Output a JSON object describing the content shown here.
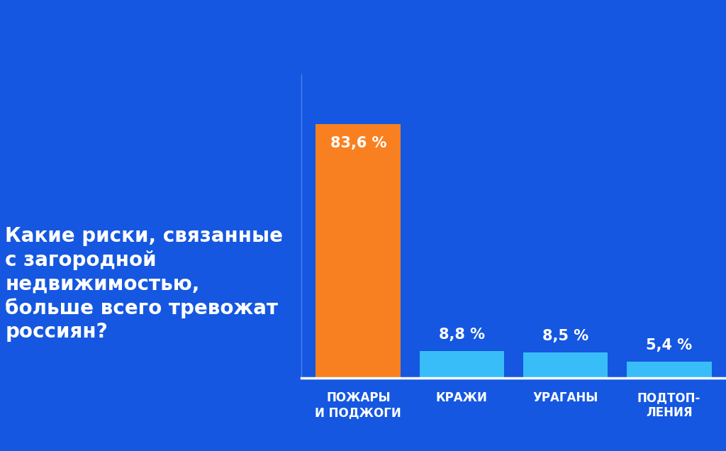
{
  "chart_data": {
    "type": "bar",
    "title": "Какие риски, связанные с загородной недвижимостью, больше всего тревожат россиян?",
    "categories": [
      "ПОЖАРЫ\nИ ПОДЖОГИ",
      "КРАЖИ",
      "УРАГАНЫ",
      "ПОДТОП-\nЛЕНИЯ"
    ],
    "values": [
      83.6,
      8.8,
      8.5,
      5.4
    ],
    "value_labels": [
      "83,6 %",
      "8,8 %",
      "8,5 %",
      "5,4 %"
    ],
    "colors": [
      "#f98020",
      "#38bdf8",
      "#38bdf8",
      "#38bdf8"
    ],
    "ylim": [
      0,
      100
    ],
    "yticks": [],
    "data_labels": true,
    "tick_labels": "x",
    "grid": false
  }
}
